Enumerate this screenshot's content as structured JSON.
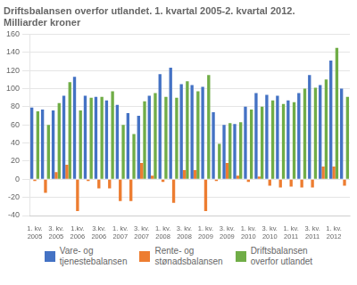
{
  "chart_data": {
    "type": "bar",
    "title": "Driftsbalansen overfor utlandet. 1. kvartal 2005-2. kvartal 2012.\nMilliarder kroner",
    "categories": [
      "1. kv.\n2005",
      null,
      "3. kv.\n2005",
      null,
      "1.kv.\n2006",
      null,
      "3.kv.\n2006",
      null,
      "1. kv.\n2007",
      null,
      "3. kv.\n2007",
      null,
      "1. kv.\n2008",
      null,
      "3. kv.\n2008",
      null,
      "1. kv.\n2009",
      null,
      "3. kv.\n2009",
      null,
      "1. kv.\n2010",
      null,
      "3. kv.\n2010",
      null,
      "1. kv.\n2011",
      null,
      "3. kv.\n2011",
      null,
      "1. kv.\n2012",
      null
    ],
    "series": [
      {
        "name": "Vare- og\ntjenestebalansen",
        "color": "#4472C4",
        "values": [
          79,
          77,
          76,
          92,
          113,
          92,
          91,
          87,
          82,
          73,
          70,
          92,
          116,
          123,
          105,
          104,
          102,
          74,
          60,
          61,
          80,
          95,
          93,
          92,
          87,
          95,
          115,
          104,
          131,
          100
        ]
      },
      {
        "name": "Rente- og\nstønadsbalansen",
        "color": "#ED7D31",
        "values": [
          -2,
          -15,
          8,
          16,
          -35,
          -2,
          -10,
          -10,
          -24,
          -24,
          18,
          4,
          -3,
          -26,
          10,
          10,
          -35,
          -2,
          18,
          4,
          -3,
          3,
          -7,
          -9,
          -8,
          -9,
          -9,
          14,
          14,
          -7
        ]
      },
      {
        "name": "Driftsbalansen\noverfor utlandet",
        "color": "#70AD47",
        "values": [
          75,
          60,
          84,
          107,
          76,
          90,
          91,
          97,
          60,
          50,
          86,
          95,
          91,
          90,
          108,
          97,
          115,
          39,
          62,
          63,
          77,
          80,
          87,
          83,
          85,
          100,
          101,
          110,
          145,
          91
        ]
      }
    ],
    "ylim": [
      -40,
      160
    ],
    "yticks": [
      -40,
      -20,
      0,
      20,
      40,
      60,
      80,
      100,
      120,
      140,
      160
    ],
    "grid": true,
    "legend": "bottom"
  }
}
